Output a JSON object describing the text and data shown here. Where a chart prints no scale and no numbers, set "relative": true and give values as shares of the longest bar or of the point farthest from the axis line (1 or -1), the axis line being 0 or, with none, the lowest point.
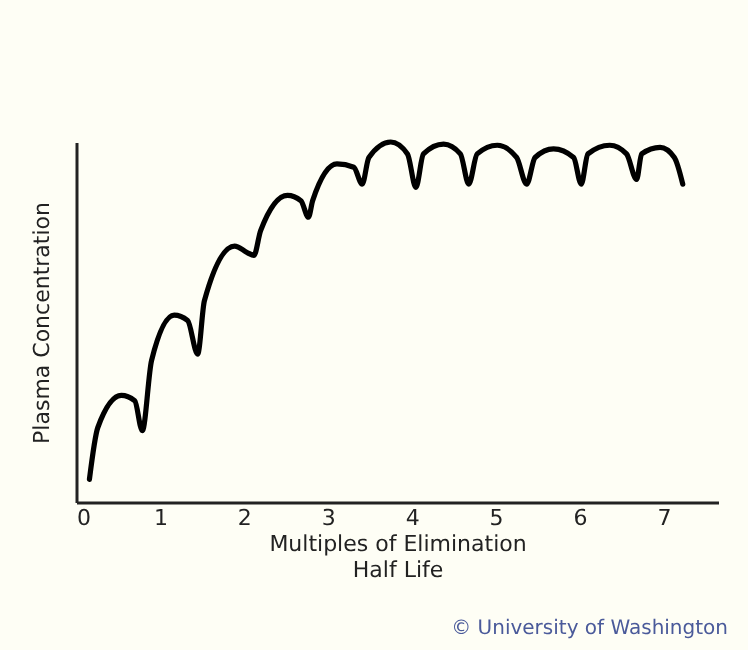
{
  "chart_data": {
    "type": "line",
    "relative": true,
    "xlabel": "Multiples of Elimination\nHalf Life",
    "ylabel": "Plasma Concentration",
    "xlim": [
      0,
      7.65
    ],
    "xticks": [
      0,
      1,
      2,
      3,
      4,
      5,
      6,
      7
    ],
    "grid": false,
    "legend": false,
    "marker": "none",
    "line_style": "solid",
    "tick_labels": "x",
    "annotations": [
      "© University of Washington"
    ],
    "series": [
      {
        "color": "#000000",
        "x": [
          0.16,
          0.26,
          0.54,
          0.7,
          0.79,
          0.9,
          1.17,
          1.33,
          1.45,
          1.53,
          1.89,
          2.04,
          2.12,
          2.2,
          2.52,
          2.68,
          2.77,
          2.82,
          3.11,
          3.31,
          3.41,
          3.49,
          3.75,
          3.95,
          4.05,
          4.14,
          4.38,
          4.58,
          4.68,
          4.78,
          5.02,
          5.25,
          5.37,
          5.47,
          5.69,
          5.93,
          6.02,
          6.1,
          6.36,
          6.56,
          6.68,
          6.74,
          6.96,
          7.13,
          7.23
        ],
        "values": [
          0.063,
          0.207,
          0.296,
          0.281,
          0.198,
          0.393,
          0.519,
          0.504,
          0.411,
          0.559,
          0.711,
          0.693,
          0.685,
          0.754,
          0.852,
          0.837,
          0.791,
          0.837,
          0.939,
          0.93,
          0.883,
          0.957,
          1.0,
          0.967,
          0.874,
          0.967,
          0.994,
          0.967,
          0.883,
          0.967,
          0.991,
          0.957,
          0.883,
          0.957,
          0.981,
          0.957,
          0.883,
          0.967,
          0.991,
          0.967,
          0.896,
          0.967,
          0.985,
          0.957,
          0.883
        ]
      }
    ]
  }
}
